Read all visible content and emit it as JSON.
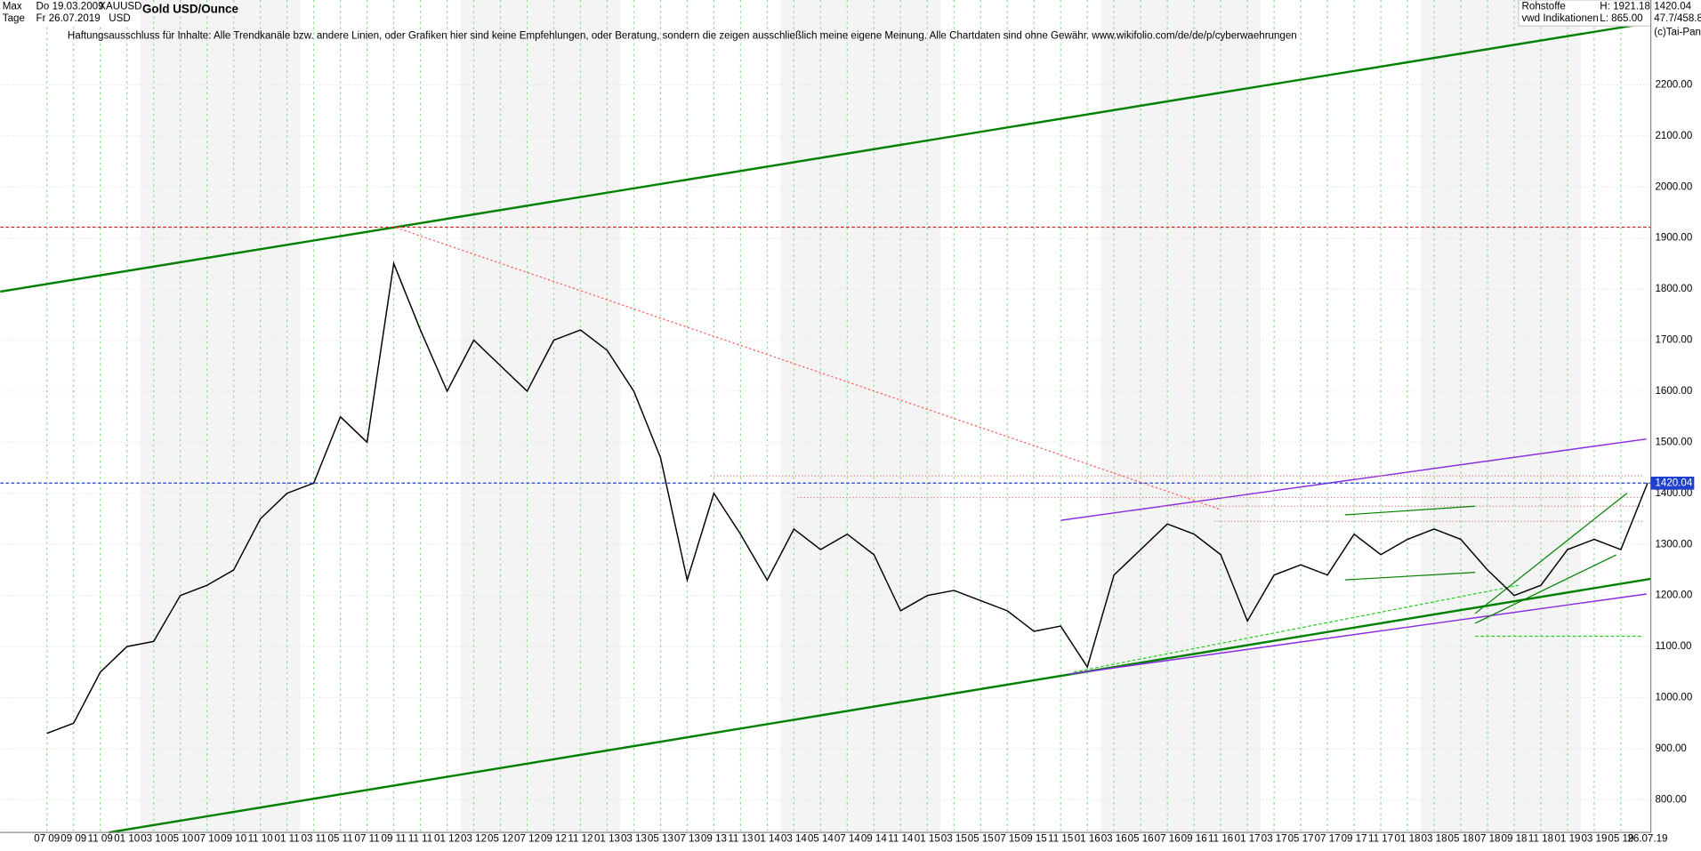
{
  "header": {
    "range": "Max",
    "start_date": "Do 19.03.2009",
    "symbol": "XAUUSD",
    "period": "Tage",
    "end_date": "Fr 26.07.2019",
    "currency": "USD",
    "group": "Rohstoffe",
    "source": "vwd Indikationen",
    "high": "H: 1921.18",
    "low": "L: 865.00",
    "ratio": "47.7/458.8",
    "copyright": "(c)Tai-Pan"
  },
  "chart_data": {
    "type": "line",
    "title": "Gold USD/Ounce",
    "annotation": "Haftungsausschluss für Inhalte: Alle Trendkanäle bzw. andere Linien, oder Grafiken hier sind keine Empfehlungen, oder Beratung, sondern die zeigen ausschließlich meine eigene Meinung. Alle Chartdaten sind ohne Gewähr.  www.wikifolio.com/de/de/p/cyberwaehrungen",
    "categories": [
      "07 09",
      "09 09",
      "11 09",
      "01 10",
      "03 10",
      "05 10",
      "07 10",
      "09 10",
      "11 10",
      "01 11",
      "03 11",
      "05 11",
      "07 11",
      "09 11",
      "11 11",
      "01 12",
      "03 12",
      "05 12",
      "07 12",
      "09 12",
      "11 12",
      "01 13",
      "03 13",
      "05 13",
      "07 13",
      "09 13",
      "11 13",
      "01 14",
      "03 14",
      "05 14",
      "07 14",
      "09 14",
      "11 14",
      "01 15",
      "03 15",
      "05 15",
      "07 15",
      "09 15",
      "11 15",
      "01 16",
      "03 16",
      "05 16",
      "07 16",
      "09 16",
      "11 16",
      "01 17",
      "03 17",
      "05 17",
      "07 17",
      "09 17",
      "11 17",
      "01 18",
      "03 18",
      "05 18",
      "07 18",
      "09 18",
      "11 18",
      "01 19",
      "03 19",
      "05 19",
      "26.07.19"
    ],
    "values": [
      930,
      950,
      1050,
      1100,
      1110,
      1200,
      1220,
      1250,
      1350,
      1400,
      1420,
      1550,
      1500,
      1850,
      1720,
      1600,
      1700,
      1650,
      1600,
      1700,
      1720,
      1680,
      1600,
      1470,
      1230,
      1400,
      1320,
      1230,
      1330,
      1290,
      1320,
      1280,
      1170,
      1200,
      1210,
      1190,
      1170,
      1130,
      1140,
      1060,
      1240,
      1290,
      1340,
      1320,
      1280,
      1150,
      1240,
      1260,
      1240,
      1320,
      1280,
      1310,
      1330,
      1310,
      1250,
      1200,
      1220,
      1290,
      1310,
      1290,
      1420.04
    ],
    "color": "#000000",
    "ylim": [
      736,
      2366
    ],
    "yticks": [
      {
        "value": 800,
        "label": "800.00"
      },
      {
        "value": 900,
        "label": "900.00"
      },
      {
        "value": 1000,
        "label": "1000.00"
      },
      {
        "value": 1100,
        "label": "1100.00"
      },
      {
        "value": 1200,
        "label": "1200.00"
      },
      {
        "value": 1300,
        "label": "1300.00"
      },
      {
        "value": 1400,
        "label": "1400.00"
      },
      {
        "value": 1500,
        "label": "1500.00"
      },
      {
        "value": 1600,
        "label": "1600.00"
      },
      {
        "value": 1700,
        "label": "1700.00"
      },
      {
        "value": 1800,
        "label": "1800.00"
      },
      {
        "value": 1900,
        "label": "1900.00"
      },
      {
        "value": 2000,
        "label": "2000.00"
      },
      {
        "value": 2100,
        "label": "2100.00"
      },
      {
        "value": 2200,
        "label": "2200.00"
      }
    ],
    "grid": true
  }
}
